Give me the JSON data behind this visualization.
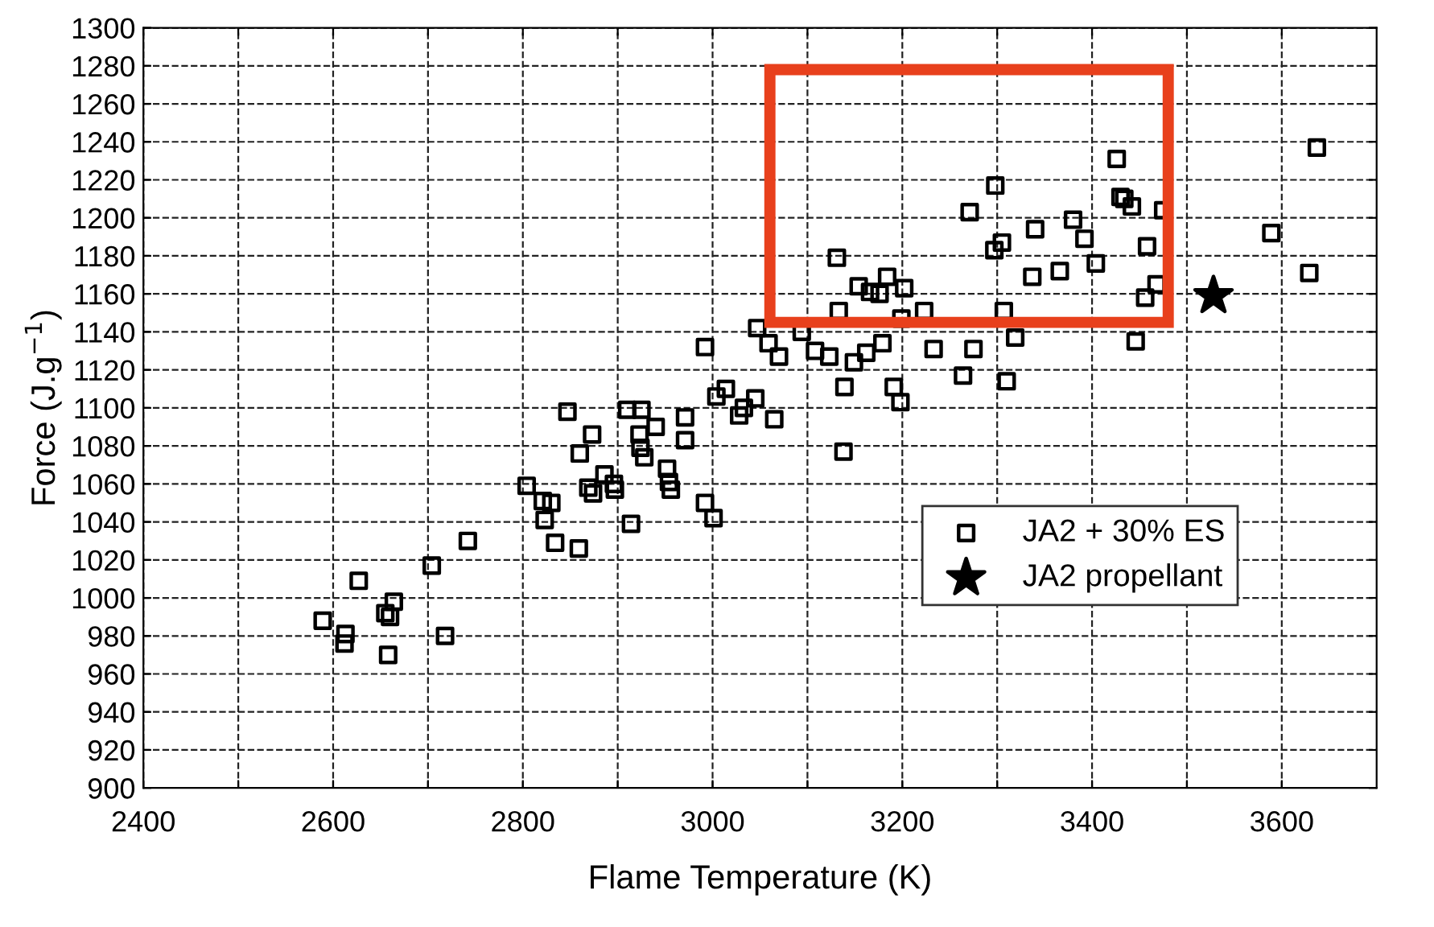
{
  "chart_data": {
    "type": "scatter",
    "xlabel": "Flame Temperature (K)",
    "ylabel": "Force (J.g$^{−1}$)",
    "xlim": [
      2400,
      3700
    ],
    "xticks": [
      2400,
      {
        "value": 2500,
        "label": null
      },
      2600,
      {
        "value": 2700,
        "label": null
      },
      2800,
      {
        "value": 2900,
        "label": null
      },
      3000,
      {
        "value": 3100,
        "label": null
      },
      3200,
      {
        "value": 3300,
        "label": null
      },
      3400,
      {
        "value": 3500,
        "label": null
      },
      3600
    ],
    "ylim": [
      900,
      1300
    ],
    "yticks": [
      900,
      920,
      940,
      960,
      980,
      1000,
      1020,
      1040,
      1060,
      1080,
      1100,
      1120,
      1140,
      1160,
      1180,
      1200,
      1220,
      1240,
      1260,
      1280,
      1300
    ],
    "grid": true,
    "legend": "bottom right",
    "series": [
      {
        "name": "JA2 + 30% ES",
        "color": "#000000",
        "marker": "square",
        "x": [
          2589,
          2613,
          2612,
          2627,
          2655,
          2660,
          2664,
          2658,
          2704,
          2718,
          2742,
          2804,
          2821,
          2823,
          2830,
          2834,
          2859,
          2847,
          2860,
          2873,
          2869,
          2874,
          2886,
          2896,
          2897,
          2910,
          2925,
          2923,
          2924,
          2928,
          2940,
          2914,
          2952,
          2954,
          2956,
          2971,
          2971,
          2992,
          2992,
          3001,
          3004,
          3014,
          3028,
          3033,
          3045,
          3047,
          3059,
          3070,
          3065,
          3094,
          3108,
          3123,
          3131,
          3133,
          3139,
          3138,
          3149,
          3154,
          3162,
          3166,
          3176,
          3179,
          3184,
          3191,
          3199,
          3198,
          3202,
          3223,
          3233,
          3264,
          3271,
          3275,
          3298,
          3297,
          3305,
          3307,
          3310,
          3319,
          3337,
          3340,
          3366,
          3380,
          3392,
          3404,
          3426,
          3430,
          3434,
          3442,
          3446,
          3458,
          3456,
          3468,
          3475,
          3589,
          3629,
          3637
        ],
        "values": [
          988,
          981,
          976,
          1009,
          992,
          990,
          998,
          970,
          1017,
          980,
          1030,
          1059,
          1051,
          1041,
          1050,
          1029,
          1026,
          1098,
          1076,
          1086,
          1058,
          1055,
          1065,
          1060,
          1057,
          1099,
          1099,
          1086,
          1079,
          1074,
          1090,
          1039,
          1068,
          1061,
          1057,
          1095,
          1083,
          1132,
          1050,
          1042,
          1106,
          1110,
          1096,
          1100,
          1105,
          1142,
          1134,
          1127,
          1094,
          1140,
          1130,
          1127,
          1179,
          1151,
          1111,
          1077,
          1124,
          1164,
          1129,
          1161,
          1160,
          1134,
          1169,
          1111,
          1147,
          1103,
          1163,
          1151,
          1131,
          1117,
          1203,
          1131,
          1217,
          1183,
          1187,
          1151,
          1114,
          1137,
          1169,
          1194,
          1172,
          1199,
          1189,
          1176,
          1231,
          1211,
          1210,
          1206,
          1135,
          1185,
          1158,
          1165,
          1204,
          1192,
          1171,
          1237
        ]
      },
      {
        "name": "JA2 propellant",
        "color": "#000000",
        "marker": "star",
        "x": [
          3528
        ],
        "values": [
          1159
        ]
      }
    ]
  }
}
